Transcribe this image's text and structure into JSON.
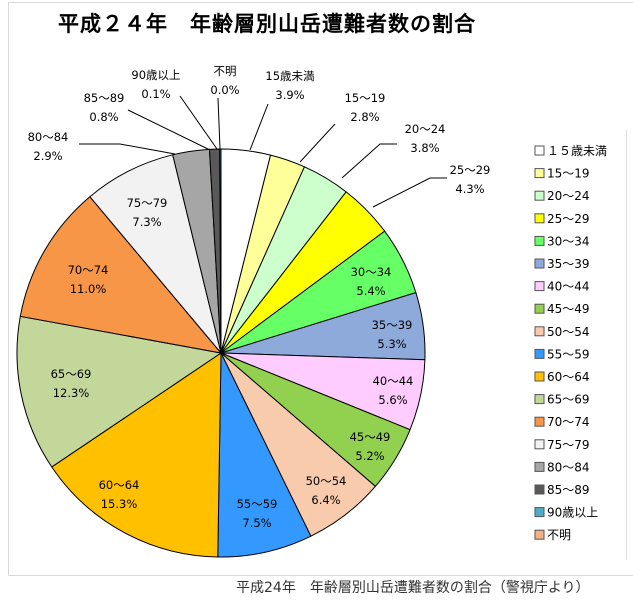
{
  "title": "平成２４年　年齢層別山岳遭難者数の割合",
  "caption": "平成24年　年齢層別山岳遭難者数の割合（警視庁より）",
  "chart_data": {
    "type": "pie",
    "title": "平成２４年　年齢層別山岳遭難者数の割合",
    "start": "top",
    "direction": "clockwise",
    "legend_position": "right",
    "slices": [
      {
        "label": "15歳未満",
        "legend": "１５歳未満",
        "value": 3.9,
        "text": "3.9%",
        "color": "#ffffff"
      },
      {
        "label": "15～19",
        "legend": "15～19",
        "value": 2.8,
        "text": "2.8%",
        "color": "#ffff99"
      },
      {
        "label": "20～24",
        "legend": "20～24",
        "value": 3.8,
        "text": "3.8%",
        "color": "#ccffcc"
      },
      {
        "label": "25～29",
        "legend": "25～29",
        "value": 4.3,
        "text": "4.3%",
        "color": "#ffff00"
      },
      {
        "label": "30～34",
        "legend": "30～34",
        "value": 5.4,
        "text": "5.4%",
        "color": "#66ff66"
      },
      {
        "label": "35～39",
        "legend": "35～39",
        "value": 5.3,
        "text": "5.3%",
        "color": "#8eaadb"
      },
      {
        "label": "40～44",
        "legend": "40～44",
        "value": 5.6,
        "text": "5.6%",
        "color": "#ffccff"
      },
      {
        "label": "45～49",
        "legend": "45～49",
        "value": 5.2,
        "text": "5.2%",
        "color": "#92d050"
      },
      {
        "label": "50～54",
        "legend": "50～54",
        "value": 6.4,
        "text": "6.4%",
        "color": "#f8cbad"
      },
      {
        "label": "55～59",
        "legend": "55～59",
        "value": 7.5,
        "text": "7.5%",
        "color": "#3399ff"
      },
      {
        "label": "60～64",
        "legend": "60～64",
        "value": 15.3,
        "text": "15.3%",
        "color": "#ffc000"
      },
      {
        "label": "65～69",
        "legend": "65～69",
        "value": 12.3,
        "text": "12.3%",
        "color": "#c4d79b"
      },
      {
        "label": "70～74",
        "legend": "70～74",
        "value": 11.0,
        "text": "11.0%",
        "color": "#f79646"
      },
      {
        "label": "75～79",
        "legend": "75～79",
        "value": 7.3,
        "text": "7.3%",
        "color": "#f2f2f2"
      },
      {
        "label": "80～84",
        "legend": "80～84",
        "value": 2.9,
        "text": "2.9%",
        "color": "#a6a6a6"
      },
      {
        "label": "85～89",
        "legend": "85～89",
        "value": 0.8,
        "text": "0.8%",
        "color": "#595959"
      },
      {
        "label": "90歳以上",
        "legend": "90歳以上",
        "value": 0.1,
        "text": "0.1%",
        "color": "#4bacc6"
      },
      {
        "label": "不明",
        "legend": "不明",
        "value": 0.0,
        "text": "0.0%",
        "color": "#f4b183"
      }
    ]
  }
}
